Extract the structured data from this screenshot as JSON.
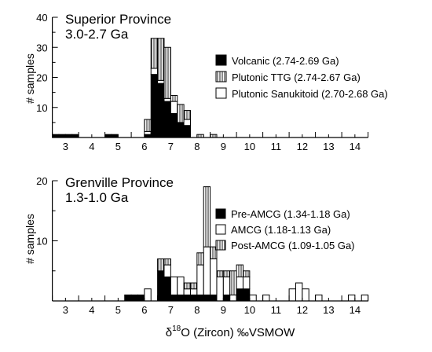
{
  "chart_data": [
    {
      "type": "bar",
      "stacked": true,
      "title": "Superior Province",
      "subtitle": "3.0-2.7 Ga",
      "ylabel": "# samples",
      "xlabel": "",
      "xlim": [
        2,
        14
      ],
      "ylim": [
        0,
        40
      ],
      "y_ticks": [
        10,
        20,
        30,
        40
      ],
      "x_ticks": [
        3,
        4,
        5,
        6,
        7,
        8,
        9,
        10,
        11,
        12,
        13,
        14
      ],
      "bin_width": 0.25,
      "bins_start": [
        2.0,
        2.25,
        2.5,
        2.75,
        4.0,
        4.25,
        5.5,
        5.75,
        6.0,
        6.25,
        6.5,
        6.75,
        7.0,
        7.25,
        7.5,
        8.0
      ],
      "series": [
        {
          "name": "Volcanic (2.74-2.69 Ga)",
          "pattern": "solid",
          "values": [
            1,
            1,
            1,
            1,
            1,
            1,
            1,
            21,
            18,
            12,
            8,
            5,
            4,
            0,
            0,
            0
          ]
        },
        {
          "name": "Plutonic Sanukitoid (2.70-2.68 Ga)",
          "pattern": "open",
          "values": [
            0,
            0,
            0,
            0,
            0,
            0,
            1,
            2,
            1,
            1,
            4,
            0,
            2,
            0,
            0,
            0
          ]
        },
        {
          "name": "Plutonic TTG (2.74-2.67 Ga)",
          "pattern": "vstripe",
          "values": [
            0,
            0,
            0,
            0,
            0,
            0,
            4,
            10,
            14,
            17,
            2,
            6,
            3,
            0,
            1,
            1
          ]
        }
      ],
      "legend": {
        "position": "right",
        "entries": [
          {
            "label": "Volcanic (2.74-2.69 Ga)",
            "pattern": "solid"
          },
          {
            "label": "Plutonic TTG (2.74-2.67 Ga)",
            "pattern": "vstripe"
          },
          {
            "label": "Plutonic Sanukitoid (2.70-2.68 Ga)",
            "pattern": "open"
          }
        ]
      }
    },
    {
      "type": "bar",
      "stacked": true,
      "title": "Grenville Province",
      "subtitle": "1.3-1.0 Ga",
      "ylabel": "# samples",
      "xlabel": "δ18O (Zircon) ‰VSMOW",
      "xlabel_parts": {
        "delta": "δ",
        "superscript": "18",
        "rest": "O (Zircon) ‰VSMOW"
      },
      "xlim": [
        2,
        14
      ],
      "ylim": [
        0,
        20
      ],
      "y_ticks": [
        10,
        20
      ],
      "x_ticks": [
        3,
        4,
        5,
        6,
        7,
        8,
        9,
        10,
        11,
        12,
        13,
        14
      ],
      "bin_width": 0.25,
      "bins_start": [
        4.75,
        5.0,
        5.25,
        5.5,
        6.0,
        6.25,
        6.5,
        6.75,
        7.0,
        7.25,
        7.5,
        7.75,
        8.0,
        8.25,
        8.5,
        8.75,
        9.0,
        9.25,
        9.5,
        10.0,
        11.0,
        11.25,
        11.5,
        12.0,
        13.25,
        13.75
      ],
      "series": [
        {
          "name": "Pre-AMCG (1.34-1.18 Ga)",
          "pattern": "solid",
          "values": [
            1,
            1,
            1,
            0,
            5,
            4,
            1,
            1,
            1,
            1,
            1,
            1,
            1,
            0,
            1,
            0,
            2,
            2,
            0,
            0,
            0,
            0,
            0,
            0,
            0,
            0
          ]
        },
        {
          "name": "AMCG (1.18-1.13 Ga)",
          "pattern": "open",
          "values": [
            0,
            0,
            0,
            2,
            0,
            2,
            3,
            3,
            1,
            1,
            5,
            8,
            6,
            4,
            3,
            1,
            2,
            2,
            1,
            1,
            2,
            3,
            2,
            1,
            1,
            1
          ]
        },
        {
          "name": "Post-AMCG (1.09-1.05 Ga)",
          "pattern": "vstripe",
          "values": [
            0,
            0,
            0,
            0,
            2,
            1,
            0,
            0,
            1,
            1,
            2,
            10,
            2,
            1,
            1,
            4,
            2,
            1,
            0,
            0,
            0,
            0,
            0,
            0,
            0,
            0
          ]
        }
      ],
      "legend": {
        "position": "right",
        "entries": [
          {
            "label": "Pre-AMCG (1.34-1.18 Ga)",
            "pattern": "solid"
          },
          {
            "label": "AMCG (1.18-1.13 Ga)",
            "pattern": "open"
          },
          {
            "label": "Post-AMCG (1.09-1.05 Ga)",
            "pattern": "vstripe"
          }
        ]
      }
    }
  ]
}
